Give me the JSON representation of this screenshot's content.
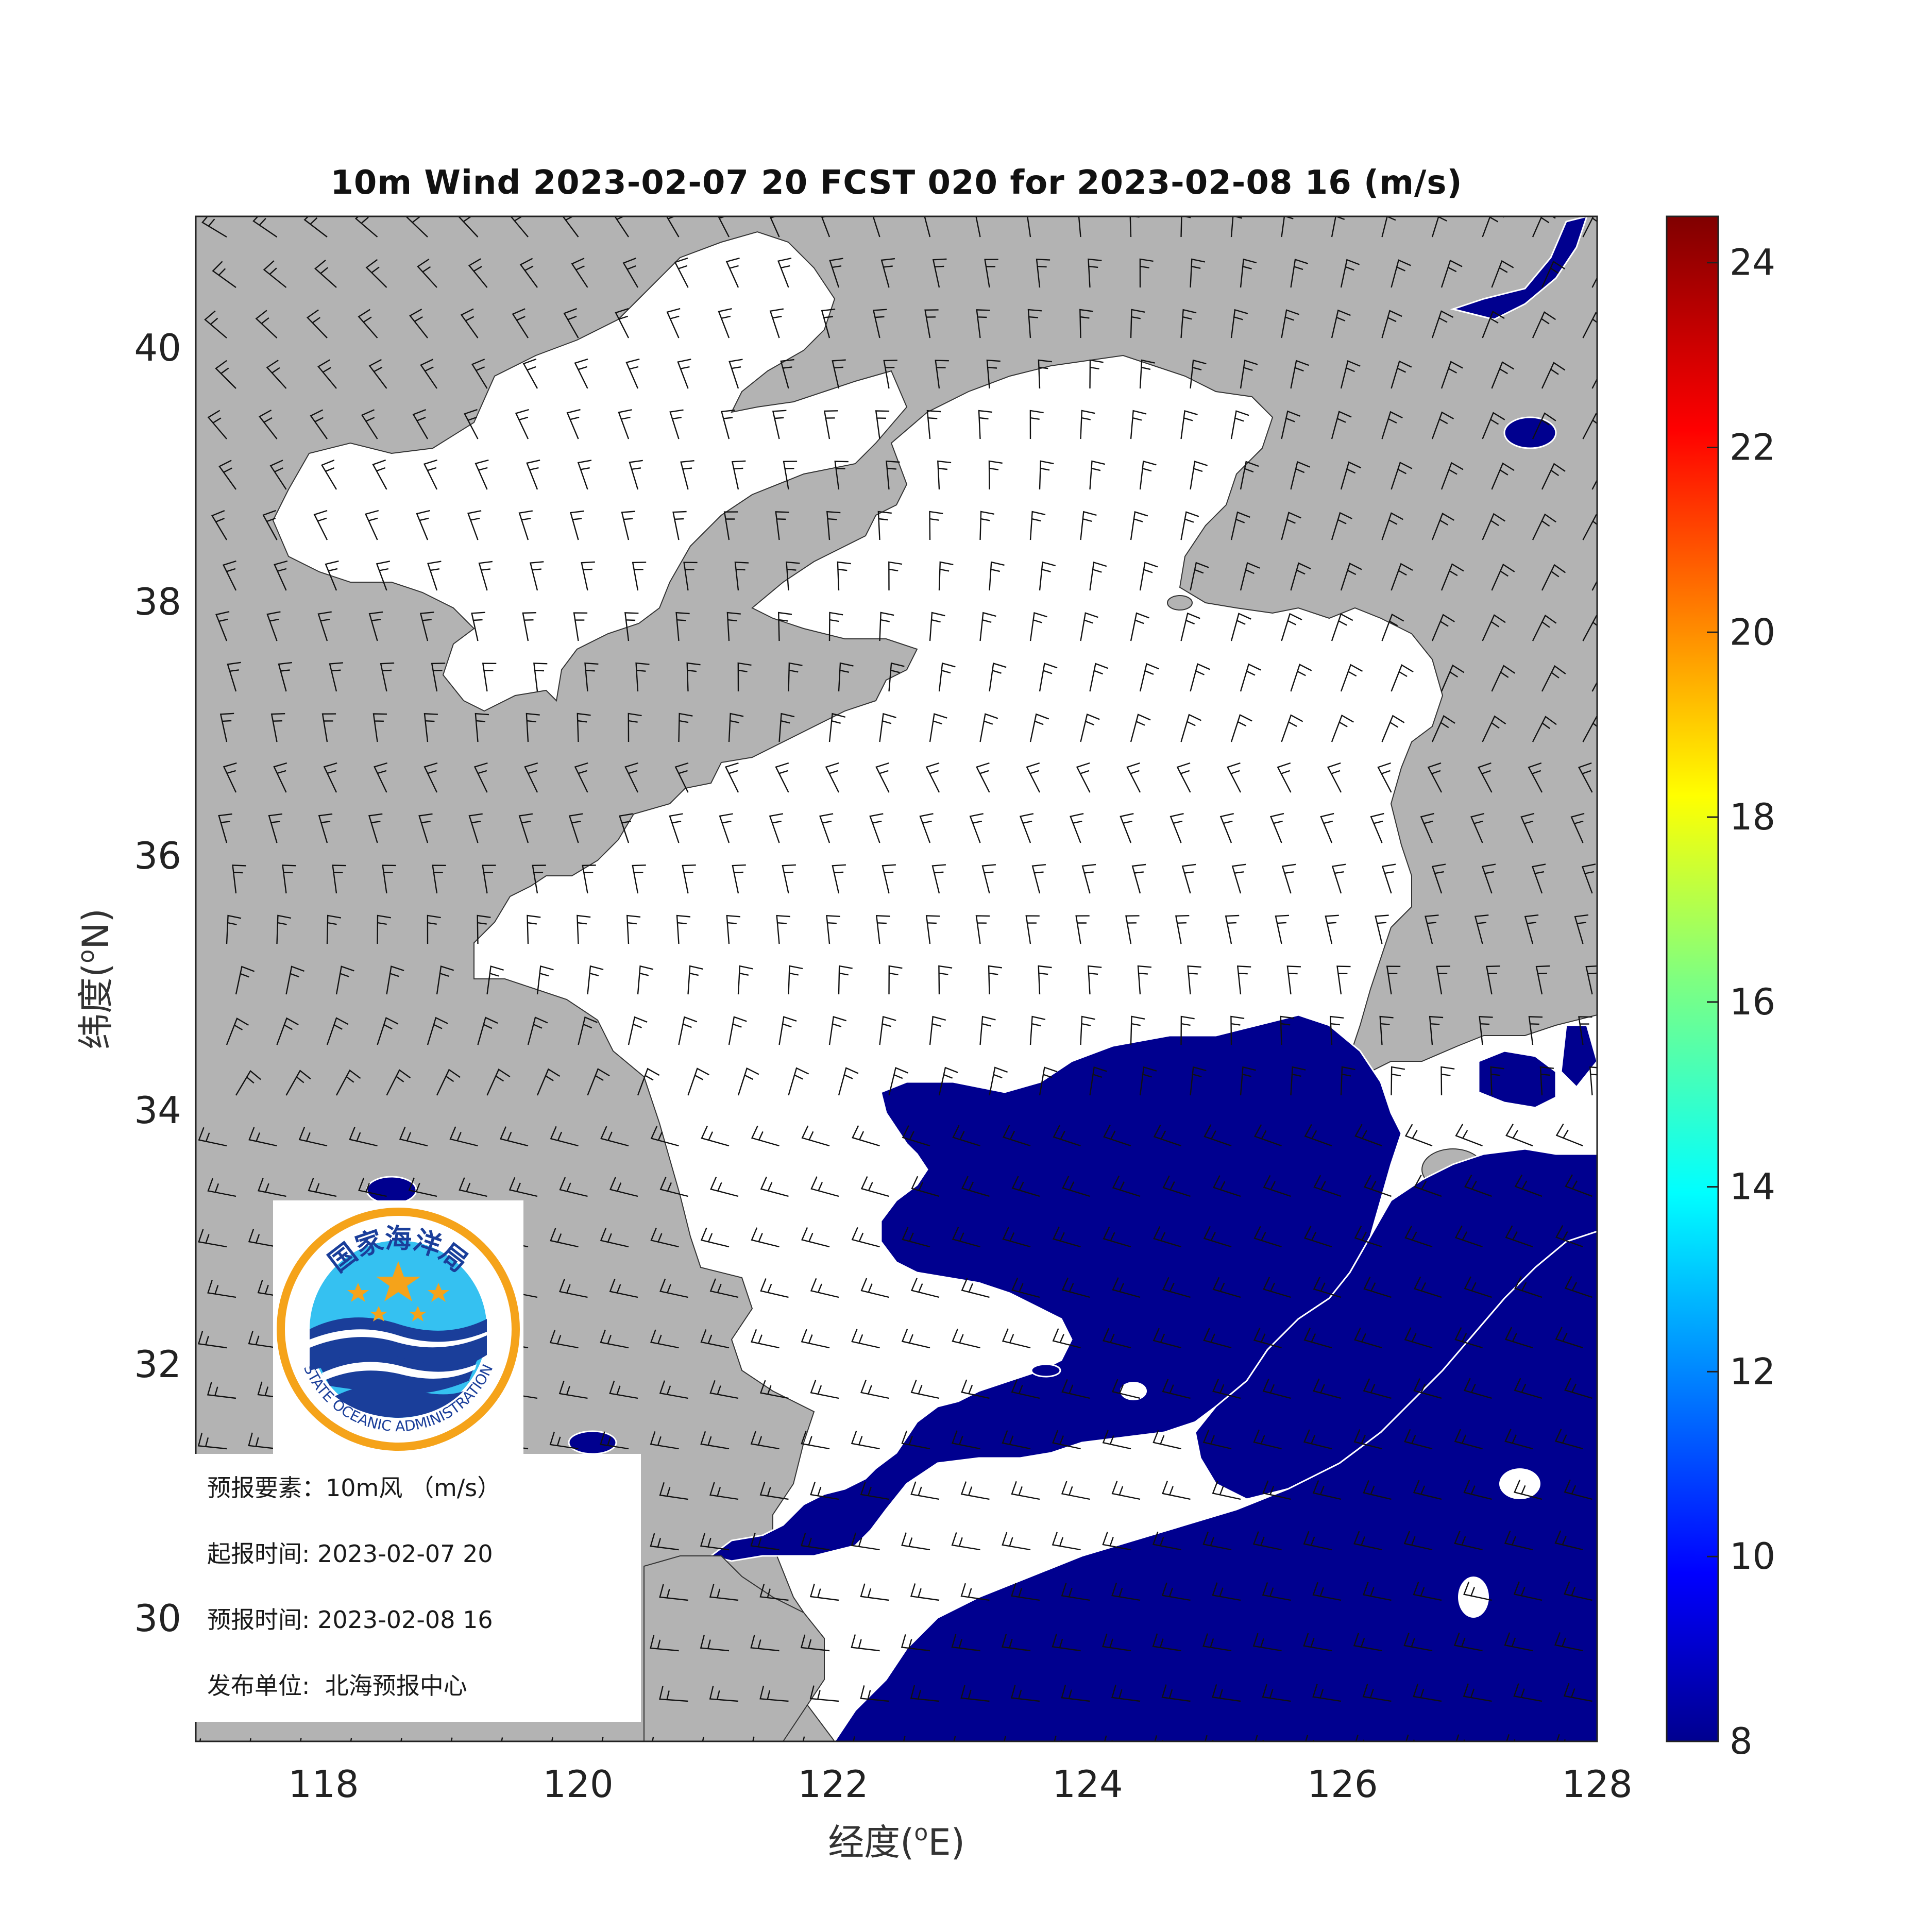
{
  "title": "10m Wind 2023-02-07 20 FCST 020 for 2023-02-08 16 (m/s)",
  "axes": {
    "x_label_prefix": "经度(",
    "x_label_sup": "o",
    "x_label_suffix": "E)",
    "y_label_prefix": "纬度(",
    "y_label_sup": "o",
    "y_label_suffix": "N)",
    "x_ticks": [
      "118",
      "120",
      "122",
      "124",
      "126",
      "128"
    ],
    "y_ticks": [
      "30",
      "32",
      "34",
      "36",
      "38",
      "40"
    ]
  },
  "colorbar": {
    "ticks": [
      "8",
      "10",
      "12",
      "14",
      "16",
      "18",
      "20",
      "22",
      "24"
    ],
    "range": [
      8,
      24.5
    ],
    "colormap": "jet"
  },
  "info": {
    "element_label": "预报要素：",
    "element_value": "10m风 （m/s）",
    "issue_label": "起报时间:",
    "issue_value": "2023-02-07 20",
    "valid_label": "预报时间:",
    "valid_value": "2023-02-08 16",
    "publisher_label": "发布单位:",
    "publisher_value": "北海预报中心"
  },
  "logo": {
    "name_cn": "国家海洋局",
    "name_en": "STATE OCEANIC ADMINISTRATION"
  },
  "colors": {
    "land": "#b3b3b3",
    "sea_light_wind": "#ffffff",
    "wind_8ms": "#00008f",
    "barb": "#111111",
    "logo_ring": "#f5a31a",
    "logo_sky": "#35c1f1",
    "logo_wave": "#1a3e9a"
  },
  "chart_data": {
    "type": "heatmap",
    "title": "10m Wind 2023-02-07 20 FCST 020 for 2023-02-08 16 (m/s)",
    "xlabel": "经度(oE)",
    "ylabel": "纬度(oN)",
    "xlim": [
      117,
      128
    ],
    "ylim": [
      29,
      41
    ],
    "colorbar_range": [
      8,
      24.5
    ],
    "note_wind_field": "northerly winds over Bohai and north Yellow Sea turning westerly over the south; speeds of about 8 m/s over the East China Sea and southern Yellow Sea"
  }
}
